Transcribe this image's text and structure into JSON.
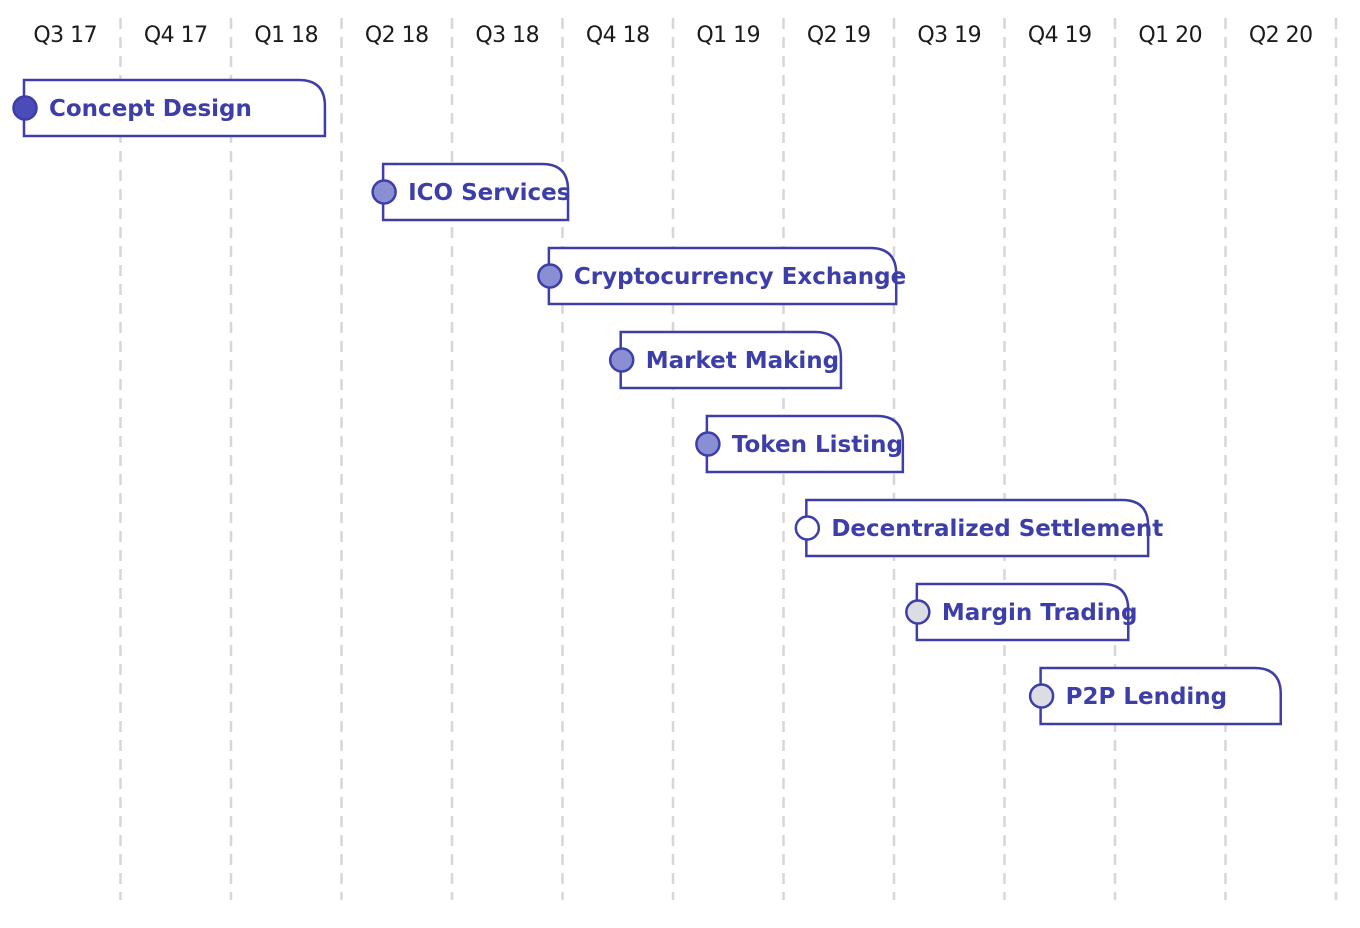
{
  "chart_data": {
    "type": "gantt",
    "x_axis": {
      "categories": [
        "Q3 17",
        "Q4 17",
        "Q1 18",
        "Q2 18",
        "Q3 18",
        "Q4 18",
        "Q1 19",
        "Q2 19",
        "Q3 19",
        "Q4 19",
        "Q1 20",
        "Q2 20"
      ],
      "position": "top",
      "grid": "dashed-vertical"
    },
    "tasks": [
      {
        "label": "Concept Design",
        "start": 0.0,
        "end": 2.85,
        "status": "completed"
      },
      {
        "label": "ICO Services",
        "start": 3.25,
        "end": 5.05,
        "status": "in-progress"
      },
      {
        "label": "Cryptocurrency Exchange",
        "start": 4.75,
        "end": 8.02,
        "status": "in-progress"
      },
      {
        "label": "Market Making",
        "start": 5.4,
        "end": 7.52,
        "status": "in-progress"
      },
      {
        "label": "Token Listing",
        "start": 6.18,
        "end": 8.08,
        "status": "in-progress"
      },
      {
        "label": "Decentralized Settlement",
        "start": 7.08,
        "end": 10.3,
        "status": "planned"
      },
      {
        "label": "Margin Trading",
        "start": 8.08,
        "end": 10.12,
        "status": "pending"
      },
      {
        "label": "P2P Lending",
        "start": 9.2,
        "end": 11.5,
        "status": "pending"
      }
    ],
    "status_colors": {
      "completed": "#4a4cb8",
      "in-progress": "#8a8ed2",
      "planned": "#ffffff",
      "pending": "#dcdce4"
    },
    "colors": {
      "accent": "#3d3ea8",
      "grid": "#d6d6dc",
      "axis_text": "#1b1b1b"
    }
  }
}
